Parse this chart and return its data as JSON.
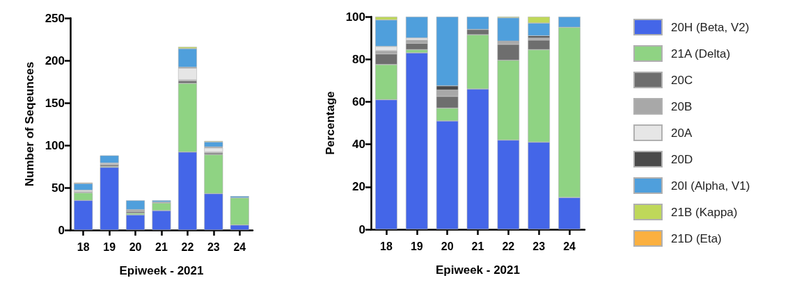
{
  "chart_data": [
    {
      "type": "bar",
      "stacked": true,
      "ylabel": "Number of Seqeunces",
      "xlabel": "Epiweek - 2021",
      "categories": [
        "18",
        "19",
        "20",
        "21",
        "22",
        "23",
        "24"
      ],
      "ylim": [
        0,
        250
      ],
      "yticks": [
        0,
        50,
        100,
        150,
        200,
        250
      ],
      "grid": false,
      "legend": false,
      "series": [
        {
          "color": "#4466e8",
          "values": [
            35,
            74,
            18,
            23,
            92,
            43,
            6
          ]
        },
        {
          "color": "#8fd383",
          "values": [
            9,
            1,
            2,
            9,
            81,
            46,
            32
          ]
        },
        {
          "color": "#6e6e6e",
          "values": [
            1,
            2,
            2,
            1,
            3,
            2,
            null
          ]
        },
        {
          "color": "#a8a8a8",
          "values": [
            null,
            1,
            1,
            null,
            1,
            1,
            null
          ]
        },
        {
          "color": "#e6e6e6",
          "values": [
            2,
            1,
            null,
            null,
            14,
            5,
            null
          ]
        },
        {
          "color": "#4a4a4a",
          "values": [
            null,
            null,
            1,
            null,
            1,
            1,
            null
          ]
        },
        {
          "color": "#4f9fdc",
          "values": [
            8,
            9,
            11,
            2,
            22,
            6,
            2
          ]
        },
        {
          "color": "#bfd85a",
          "values": [
            null,
            null,
            null,
            null,
            2,
            1,
            null
          ]
        },
        {
          "color": "#fbb040",
          "values": [
            1,
            null,
            null,
            null,
            null,
            null,
            null
          ]
        }
      ]
    },
    {
      "type": "bar",
      "stacked": true,
      "ylabel": "Percentage",
      "xlabel": "Epiweek - 2021",
      "categories": [
        "18",
        "19",
        "20",
        "21",
        "22",
        "23",
        "24"
      ],
      "ylim": [
        0,
        100
      ],
      "yticks": [
        0,
        20,
        40,
        60,
        80,
        100
      ],
      "grid": false,
      "legend": "right",
      "series": [
        {
          "name": "20H (Beta, V2)",
          "color": "#4466e8",
          "values": [
            61,
            83,
            51,
            66,
            42,
            41,
            15
          ]
        },
        {
          "name": "21A (Delta)",
          "color": "#8fd383",
          "values": [
            16.5,
            1.5,
            6,
            25.5,
            37.5,
            43.5,
            80
          ]
        },
        {
          "name": "20C",
          "color": "#6e6e6e",
          "values": [
            5,
            3,
            5.5,
            2.5,
            7.5,
            4.5,
            null
          ]
        },
        {
          "name": "20B",
          "color": "#a8a8a8",
          "values": [
            1.5,
            1.5,
            3,
            null,
            1,
            1,
            null
          ]
        },
        {
          "name": "20A",
          "color": "#e6e6e6",
          "values": [
            2,
            1,
            null,
            null,
            null,
            null,
            null
          ]
        },
        {
          "name": "20D",
          "color": "#4a4a4a",
          "values": [
            null,
            null,
            2,
            null,
            0.5,
            1,
            null
          ]
        },
        {
          "name": "20I (Alpha, V1)",
          "color": "#4f9fdc",
          "values": [
            12.5,
            10,
            32.5,
            6,
            11,
            6,
            5
          ]
        },
        {
          "name": "21B (Kappa)",
          "color": "#bfd85a",
          "values": [
            1.5,
            null,
            null,
            null,
            0.5,
            3,
            null
          ]
        },
        {
          "name": "21D (Eta)",
          "color": "#fbb040",
          "values": [
            null,
            null,
            null,
            null,
            null,
            null,
            null
          ]
        }
      ]
    }
  ]
}
